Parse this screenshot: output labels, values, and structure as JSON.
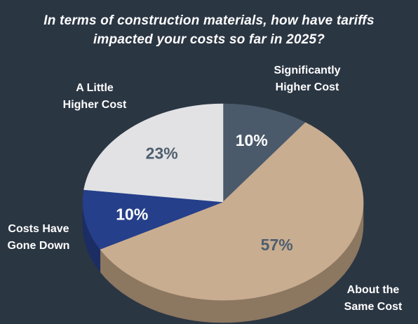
{
  "chart_data": {
    "type": "pie",
    "title_lines": [
      "In terms of construction materials, how have tariffs",
      "impacted your costs so far in 2025?"
    ],
    "slices": [
      {
        "label_lines": [
          "Significantly",
          "Higher Cost"
        ],
        "value": 10,
        "value_label": "10%",
        "color": "#4a5a6b",
        "side_color": "#38454f",
        "text_color": "#ffffff"
      },
      {
        "label_lines": [
          "About the",
          "Same Cost"
        ],
        "value": 57,
        "value_label": "57%",
        "color": "#c9ad90",
        "side_color": "#8c7761",
        "text_color": "#4e5e6e"
      },
      {
        "label_lines": [
          "Costs Have",
          "Gone Down"
        ],
        "value": 10,
        "value_label": "10%",
        "color": "#253f8a",
        "side_color": "#1b2d63",
        "text_color": "#ffffff"
      },
      {
        "label_lines": [
          "A Little",
          "Higher Cost"
        ],
        "value": 23,
        "value_label": "23%",
        "color": "#e2e2e4",
        "side_color": "#a9a9ad",
        "text_color": "#4e5e6e"
      }
    ],
    "legend": "none",
    "style": "3d-pie"
  }
}
